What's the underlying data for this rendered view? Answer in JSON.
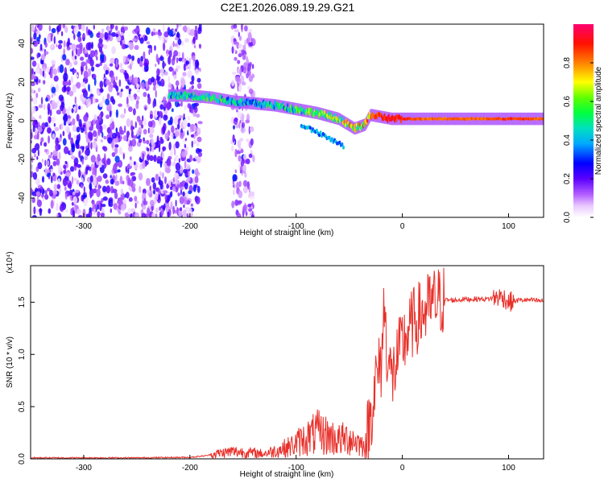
{
  "title": "C2E1.2026.089.19.29.G21",
  "chart_data": [
    {
      "type": "heatmap",
      "name": "spectrogram",
      "xlabel": "Height of straight line (km)",
      "ylabel": "Frequency (Hz)",
      "xlim": [
        -350,
        133
      ],
      "ylim": [
        -50,
        50
      ],
      "xticks": [
        -300,
        -200,
        -100,
        0,
        100
      ],
      "yticks": [
        -40,
        -20,
        0,
        20,
        40
      ],
      "colorbar": {
        "label": "Normalized spectral amplitude",
        "range": [
          0,
          1
        ],
        "ticks": [
          0.0,
          0.2,
          0.4,
          0.6,
          0.8
        ],
        "colors": [
          "#ffffff",
          "#ce8bff",
          "#7b00ff",
          "#0000ff",
          "#00c8ff",
          "#00ff80",
          "#40ff00",
          "#ffff00",
          "#ff8000",
          "#ff0000",
          "#ff0066"
        ]
      },
      "signal_track": {
        "x": [
          -220,
          -200,
          -180,
          -160,
          -140,
          -120,
          -100,
          -80,
          -60,
          -45,
          -35,
          -30,
          -20,
          -10,
          0,
          20,
          50,
          80,
          100,
          133
        ],
        "frequency": [
          13,
          13,
          12,
          10,
          9,
          8,
          6,
          4,
          1,
          -4,
          -2,
          3,
          2,
          1,
          1,
          1,
          1,
          1,
          1,
          1
        ],
        "amplitude": [
          0.45,
          0.5,
          0.55,
          0.5,
          0.45,
          0.5,
          0.55,
          0.6,
          0.65,
          0.75,
          0.85,
          0.85,
          0.9,
          0.95,
          0.9,
          0.85,
          0.85,
          0.85,
          0.9,
          0.85
        ]
      },
      "noise_regions": [
        {
          "xmin": -350,
          "xmax": -190,
          "amplitude": 0.2
        },
        {
          "xmin": -160,
          "xmax": -140,
          "amplitude": 0.15
        }
      ]
    },
    {
      "type": "line",
      "name": "snr",
      "xlabel": "Height of straight line (km)",
      "ylabel": "SNR (10 * v/v)",
      "y_multiplier": "(x10⁴)",
      "xlim": [
        -350,
        133
      ],
      "ylim": [
        0,
        1.85
      ],
      "xticks": [
        -300,
        -200,
        -100,
        0,
        100
      ],
      "yticks": [
        0.0,
        0.5,
        1.0,
        1.5
      ],
      "series": [
        {
          "name": "SNR",
          "color": "#e8302a",
          "x": [
            -350,
            -300,
            -250,
            -200,
            -185,
            -175,
            -160,
            -145,
            -130,
            -115,
            -105,
            -100,
            -90,
            -80,
            -70,
            -60,
            -50,
            -40,
            -35,
            -30,
            -25,
            -20,
            -17,
            -15,
            -10,
            -5,
            0,
            5,
            10,
            15,
            20,
            25,
            30,
            40,
            50,
            60,
            70,
            80,
            90,
            95,
            100,
            110,
            120,
            133
          ],
          "y": [
            0.01,
            0.01,
            0.01,
            0.015,
            0.03,
            0.05,
            0.07,
            0.06,
            0.05,
            0.09,
            0.12,
            0.15,
            0.2,
            0.25,
            0.22,
            0.18,
            0.2,
            0.15,
            0.1,
            0.4,
            0.75,
            0.9,
            1.5,
            1.1,
            0.75,
            0.95,
            1.1,
            1.2,
            1.3,
            1.35,
            1.4,
            1.45,
            1.5,
            1.52,
            1.52,
            1.53,
            1.53,
            1.53,
            1.55,
            1.55,
            1.5,
            1.52,
            1.52,
            1.51
          ]
        }
      ]
    }
  ]
}
